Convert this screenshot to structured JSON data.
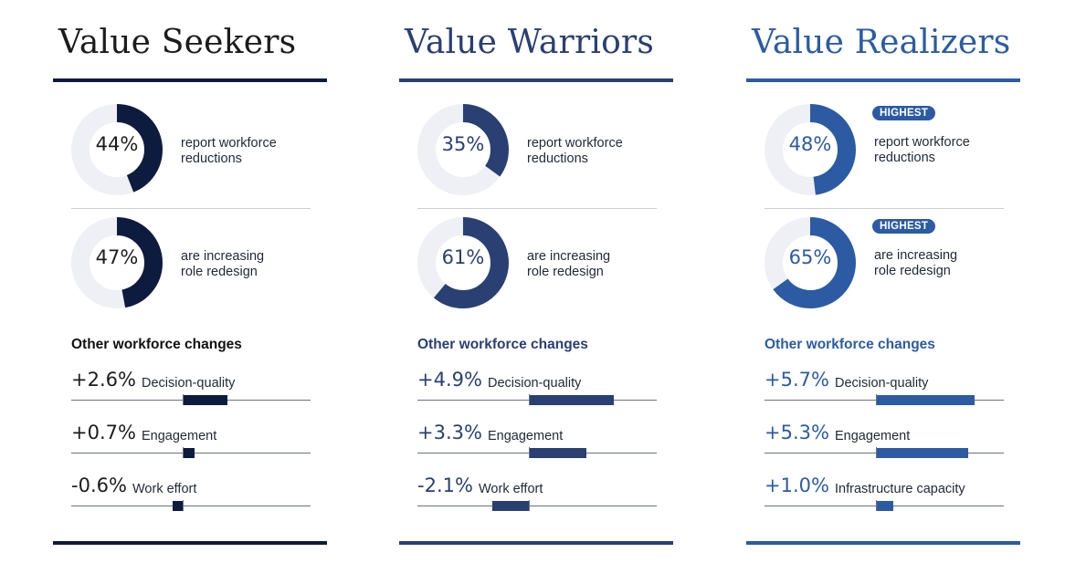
{
  "chart_data": [
    {
      "type": "bar",
      "title": "Value Seekers",
      "color": "#0d1b3e",
      "donuts": [
        {
          "value": 44,
          "label": "44%",
          "text": [
            "report workforce",
            "reductions"
          ],
          "badge": ""
        },
        {
          "value": 47,
          "label": "47%",
          "text": [
            "are increasing",
            "role redesign"
          ],
          "badge": ""
        }
      ],
      "section_title": "Other workforce changes",
      "categories": [
        "Decision-quality",
        "Engagement",
        "Work effort"
      ],
      "values": [
        2.6,
        0.7,
        -0.6
      ],
      "value_labels": [
        "+2.6%",
        "+0.7%",
        "-0.6%"
      ]
    },
    {
      "type": "bar",
      "title": "Value Warriors",
      "color": "#2a3f72",
      "donuts": [
        {
          "value": 35,
          "label": "35%",
          "text": [
            "report workforce",
            "reductions"
          ],
          "badge": ""
        },
        {
          "value": 61,
          "label": "61%",
          "text": [
            "are increasing",
            "role redesign"
          ],
          "badge": ""
        }
      ],
      "section_title": "Other workforce changes",
      "categories": [
        "Decision-quality",
        "Engagement",
        "Work effort"
      ],
      "values": [
        4.9,
        3.3,
        -2.1
      ],
      "value_labels": [
        "+4.9%",
        "+3.3%",
        "-2.1%"
      ]
    },
    {
      "type": "bar",
      "title": "Value Realizers",
      "color": "#2c5ba3",
      "donuts": [
        {
          "value": 48,
          "label": "48%",
          "text": [
            "report workforce",
            "reductions"
          ],
          "badge": "HIGHEST"
        },
        {
          "value": 65,
          "label": "65%",
          "text": [
            "are increasing",
            "role redesign"
          ],
          "badge": "HIGHEST"
        }
      ],
      "section_title": "Other workforce changes",
      "categories": [
        "Decision-quality",
        "Engagement",
        "Infrastructure capacity"
      ],
      "values": [
        5.7,
        5.3,
        1.0
      ],
      "value_labels": [
        "+5.7%",
        "+5.3%",
        "+1.0%"
      ]
    }
  ],
  "track_color": "#eef0f5"
}
